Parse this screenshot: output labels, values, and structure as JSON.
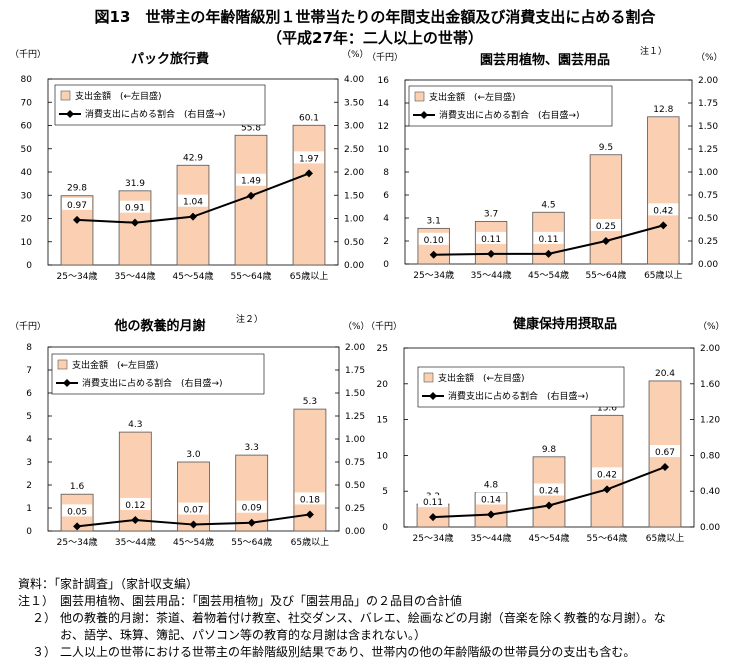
{
  "figure": {
    "title": "図13　世帯主の年齢階級別１世帯当たりの年間支出金額及び消費支出に占める割合",
    "subtitle": "（平成27年：二人以上の世帯）"
  },
  "colors": {
    "bar_fill": "#fbd0b2",
    "bar_stroke": "#555555",
    "line": "#000000",
    "label_bg": "#ffffff"
  },
  "chart_data": [
    {
      "type": "bar",
      "title": "パック旅行費",
      "title_note": "",
      "categories": [
        "25～34歳",
        "35～44歳",
        "45～54歳",
        "55～64歳",
        "65歳以上"
      ],
      "left_unit": "（千円）",
      "right_unit": "（%）",
      "ylim": [
        0,
        80
      ],
      "y2lim": [
        0,
        4.0
      ],
      "yticks": [
        "0",
        "10",
        "20",
        "30",
        "40",
        "50",
        "60",
        "70",
        "80"
      ],
      "y2ticks": [
        "0.00",
        "0.50",
        "1.00",
        "1.50",
        "2.00",
        "2.50",
        "3.00",
        "3.50",
        "4.00"
      ],
      "legend": [
        "支出金額　(←左目盛)",
        "消費支出に占める割合　(右目盛→)"
      ],
      "series": [
        {
          "name": "支出金額",
          "values": [
            29.8,
            31.9,
            42.9,
            55.8,
            60.1
          ],
          "labels": [
            "29.8",
            "31.9",
            "42.9",
            "55.8",
            "60.1"
          ]
        },
        {
          "name": "消費支出に占める割合",
          "values": [
            0.97,
            0.91,
            1.04,
            1.49,
            1.97
          ],
          "labels": [
            "0.97",
            "0.91",
            "1.04",
            "1.49",
            "1.97"
          ]
        }
      ]
    },
    {
      "type": "bar",
      "title": "園芸用植物、園芸用品",
      "title_note": "注１）",
      "categories": [
        "25～34歳",
        "35～44歳",
        "45～54歳",
        "55～64歳",
        "65歳以上"
      ],
      "left_unit": "（千円）",
      "right_unit": "（%）",
      "ylim": [
        0,
        16
      ],
      "y2lim": [
        0,
        2.0
      ],
      "yticks": [
        "0",
        "2",
        "4",
        "6",
        "8",
        "10",
        "12",
        "14",
        "16"
      ],
      "y2ticks": [
        "0.00",
        "0.25",
        "0.50",
        "0.75",
        "1.00",
        "1.25",
        "1.50",
        "1.75",
        "2.00"
      ],
      "legend": [
        "支出金額　(←左目盛)",
        "消費支出に占める割合　(右目盛→)"
      ],
      "series": [
        {
          "name": "支出金額",
          "values": [
            3.1,
            3.7,
            4.5,
            9.5,
            12.8
          ],
          "labels": [
            "3.1",
            "3.7",
            "4.5",
            "9.5",
            "12.8"
          ]
        },
        {
          "name": "消費支出に占める割合",
          "values": [
            0.1,
            0.11,
            0.11,
            0.25,
            0.42
          ],
          "labels": [
            "0.10",
            "0.11",
            "0.11",
            "0.25",
            "0.42"
          ]
        }
      ]
    },
    {
      "type": "bar",
      "title": "他の教養的月謝",
      "title_note": "注２）",
      "categories": [
        "25～34歳",
        "35～44歳",
        "45～54歳",
        "55～64歳",
        "65歳以上"
      ],
      "left_unit": "（千円）",
      "right_unit": "（%）",
      "ylim": [
        0,
        8
      ],
      "y2lim": [
        0,
        2.0
      ],
      "yticks": [
        "0",
        "1",
        "2",
        "3",
        "4",
        "5",
        "6",
        "7",
        "8"
      ],
      "y2ticks": [
        "0.00",
        "0.25",
        "0.50",
        "0.75",
        "1.00",
        "1.25",
        "1.50",
        "1.75",
        "2.00"
      ],
      "legend": [
        "支出金額　(←左目盛)",
        "消費支出に占める割合　(右目盛→)"
      ],
      "series": [
        {
          "name": "支出金額",
          "values": [
            1.6,
            4.3,
            3.0,
            3.3,
            5.3
          ],
          "labels": [
            "1.6",
            "4.3",
            "3.0",
            "3.3",
            "5.3"
          ]
        },
        {
          "name": "消費支出に占める割合",
          "values": [
            0.05,
            0.12,
            0.07,
            0.09,
            0.18
          ],
          "labels": [
            "0.05",
            "0.12",
            "0.07",
            "0.09",
            "0.18"
          ]
        }
      ]
    },
    {
      "type": "bar",
      "title": "健康保持用摂取品",
      "title_note": "",
      "categories": [
        "25～34歳",
        "35～44歳",
        "45～54歳",
        "55～64歳",
        "65歳以上"
      ],
      "left_unit": "（千円）",
      "right_unit": "（%）",
      "ylim": [
        0,
        25
      ],
      "y2lim": [
        0,
        2.0
      ],
      "yticks": [
        "0",
        "5",
        "10",
        "15",
        "20",
        "25"
      ],
      "y2ticks": [
        "0.00",
        "0.40",
        "0.80",
        "1.20",
        "1.60",
        "2.00"
      ],
      "legend": [
        "支出金額　(←左目盛)",
        "消費支出に占める割合　(右目盛→)"
      ],
      "series": [
        {
          "name": "支出金額",
          "values": [
            3.2,
            4.8,
            9.8,
            15.6,
            20.4
          ],
          "labels": [
            "3.2",
            "4.8",
            "9.8",
            "15.6",
            "20.4"
          ]
        },
        {
          "name": "消費支出に占める割合",
          "values": [
            0.11,
            0.14,
            0.24,
            0.42,
            0.67
          ],
          "labels": [
            "0.11",
            "0.14",
            "0.24",
            "0.42",
            "0.67"
          ]
        }
      ]
    }
  ],
  "notes": {
    "source": "資料：「家計調査」（家計収支編）",
    "note1_label": "注１）",
    "note1": "園芸用植物、園芸用品：「園芸用植物」及び「園芸用品」の２品目の合計値",
    "note2_label": "２）",
    "note2_line1": "他の教養的月謝：茶道、着物着付け教室、社交ダンス、バレエ、絵画などの月謝（音楽を除く教養的な月謝）。な",
    "note2_line2": "お、語学、珠算、簿記、パソコン等の教育的な月謝は含まれない。）",
    "note3_label": "３）",
    "note3": "二人以上の世帯における世帯主の年齢階級別結果であり、世帯内の他の年齢階級の世帯員分の支出も含む。"
  }
}
